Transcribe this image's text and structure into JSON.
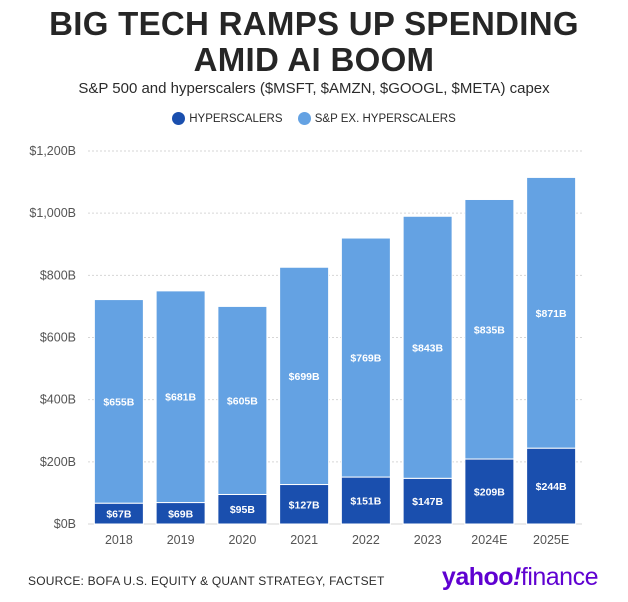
{
  "title_line1": "BIG TECH RAMPS UP SPENDING",
  "title_line2": "AMID AI BOOM",
  "subtitle": "S&P 500 and hyperscalers ($MSFT, $AMZN, $GOOGL, $META) capex",
  "source": "SOURCE: BOFA U.S. EQUITY & QUANT STRATEGY, FACTSET",
  "logo": {
    "yahoo": "yahoo",
    "bang": "!",
    "finance": "finance"
  },
  "colors": {
    "hyperscalers": "#1a4fae",
    "sp_ex": "#64a2e3",
    "grid": "#d6d6d6",
    "axis_text": "#555555"
  },
  "chart_data": {
    "type": "bar",
    "stacked": true,
    "categories": [
      "2018",
      "2019",
      "2020",
      "2021",
      "2022",
      "2023",
      "2024E",
      "2025E"
    ],
    "series": [
      {
        "name": "HYPERSCALERS",
        "values": [
          67,
          69,
          95,
          127,
          151,
          147,
          209,
          244
        ],
        "labels": [
          "$67B",
          "$69B",
          "$95B",
          "$127B",
          "$151B",
          "$147B",
          "$209B",
          "$244B"
        ]
      },
      {
        "name": "S&P EX. HYPERSCALERS",
        "values": [
          655,
          681,
          605,
          699,
          769,
          843,
          835,
          871
        ],
        "labels": [
          "$655B",
          "$681B",
          "$605B",
          "$699B",
          "$769B",
          "$843B",
          "$835B",
          "$871B"
        ]
      }
    ],
    "ylim": [
      0,
      1200
    ],
    "yticks": [
      0,
      200,
      400,
      600,
      800,
      1000,
      1200
    ],
    "ytick_labels": [
      "$0B",
      "$200B",
      "$400B",
      "$600B",
      "$800B",
      "$1,000B",
      "$1,200B"
    ],
    "grid": true,
    "legend_position": "top-center"
  }
}
